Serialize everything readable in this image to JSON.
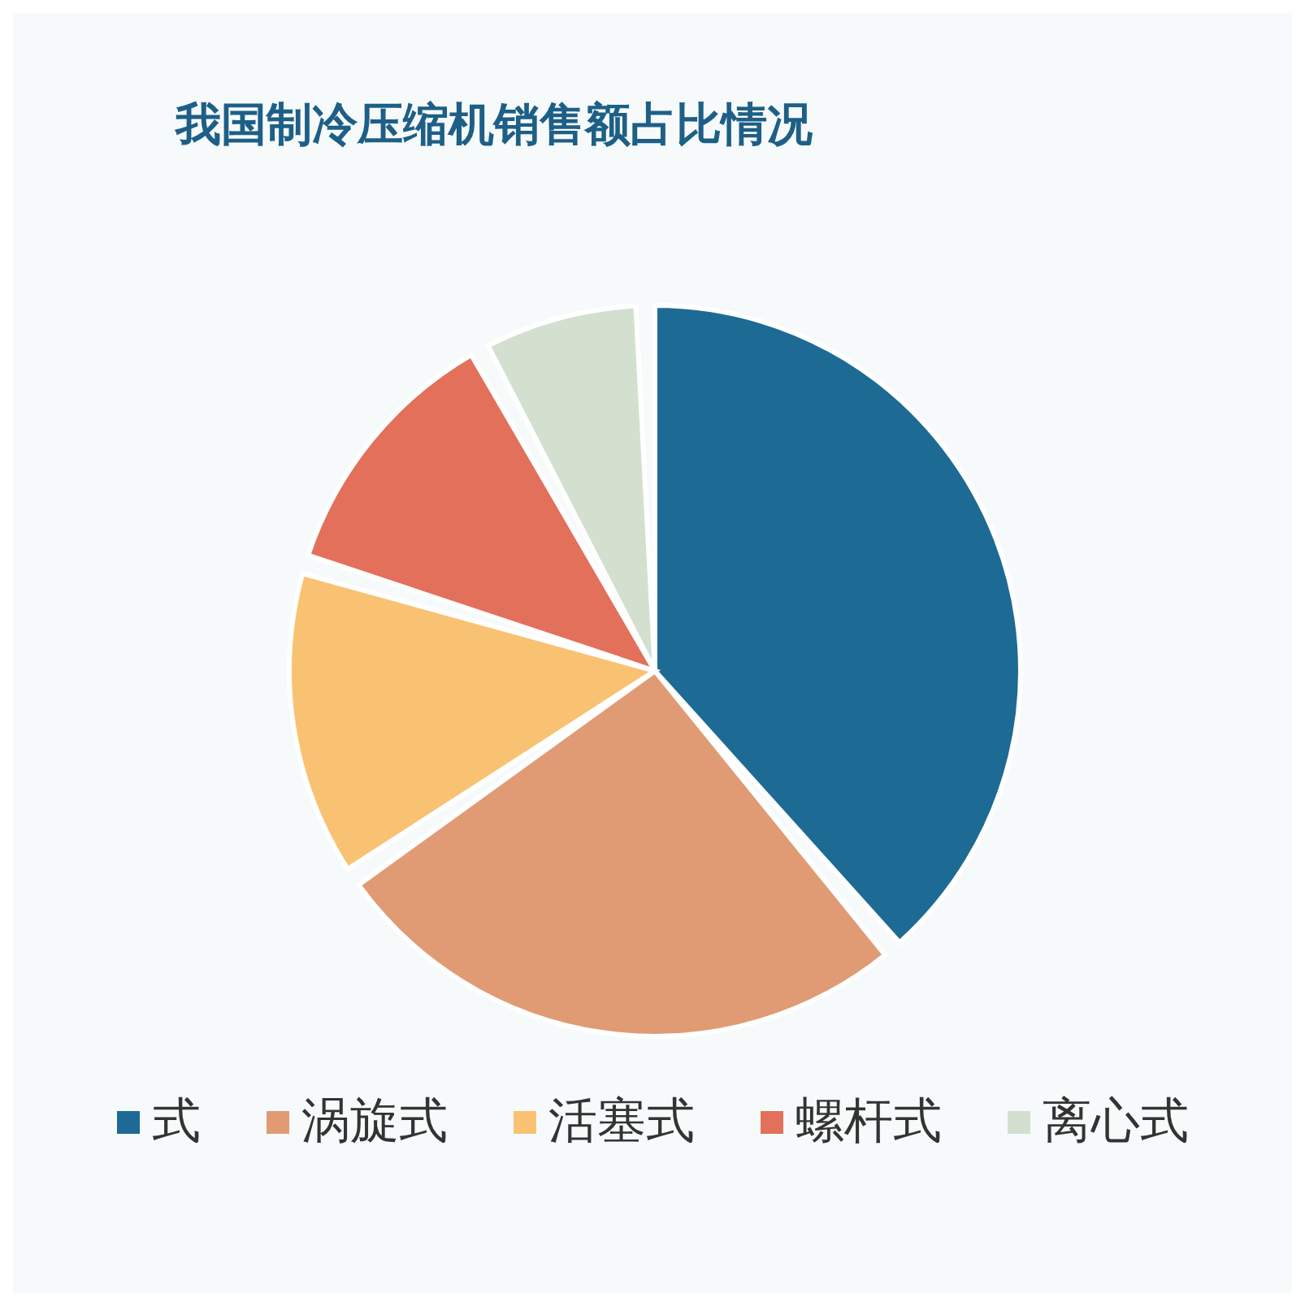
{
  "chart_data": {
    "type": "pie",
    "title": "我国制冷压缩机销售额占比情况",
    "categories": [
      "式",
      "涡旋式",
      "活塞式",
      "螺杆式",
      "离心式"
    ],
    "values": [
      40,
      27,
      14,
      12,
      7
    ],
    "colors": [
      "#1d6a94",
      "#e09b74",
      "#f9c272",
      "#e2705a",
      "#d3e0cf"
    ],
    "legend": "bottom"
  }
}
